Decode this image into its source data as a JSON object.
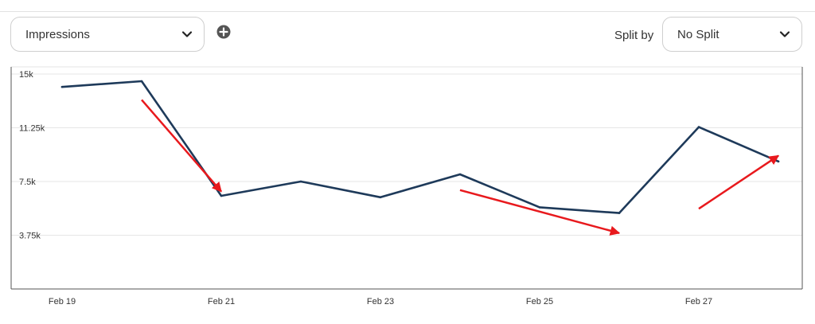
{
  "controls": {
    "metric_select_value": "Impressions",
    "add_icon": "plus-circle-icon",
    "split_label": "Split by",
    "split_select_value": "No Split",
    "dropdown_icon": "chevron-down-icon"
  },
  "colors": {
    "line": "#1e3a5a",
    "annotation_arrows": "#e8191d",
    "gridline": "#e6e6e6",
    "axis": "#555555"
  },
  "chart_data": {
    "type": "line",
    "title": "",
    "xlabel": "",
    "ylabel": "",
    "x": [
      "Feb 19",
      "Feb 20",
      "Feb 21",
      "Feb 22",
      "Feb 23",
      "Feb 24",
      "Feb 25",
      "Feb 26",
      "Feb 27",
      "Feb 28"
    ],
    "x_tick_labels": [
      "Feb 19",
      "Feb 21",
      "Feb 23",
      "Feb 25",
      "Feb 27"
    ],
    "y_tick_labels": [
      "15k",
      "11.25k",
      "7.5k",
      "3.75k"
    ],
    "y_ticks": [
      15000,
      11250,
      7500,
      3750
    ],
    "ylim": [
      0,
      15000
    ],
    "grid": true,
    "series": [
      {
        "values": [
          14100,
          14500,
          6500,
          7500,
          6400,
          8000,
          5700,
          5300,
          11300,
          8900
        ]
      }
    ],
    "annotations": [
      {
        "type": "arrow",
        "direction": "down",
        "from": [
          "Feb 20",
          13200
        ],
        "to": [
          "Feb 21",
          6800
        ]
      },
      {
        "type": "arrow",
        "direction": "down",
        "from": [
          "Feb 24",
          6900
        ],
        "to": [
          "Feb 26",
          3900
        ]
      },
      {
        "type": "arrow",
        "direction": "up",
        "from": [
          "Feb 27",
          5600
        ],
        "to": [
          "Feb 28",
          9300
        ]
      }
    ]
  }
}
